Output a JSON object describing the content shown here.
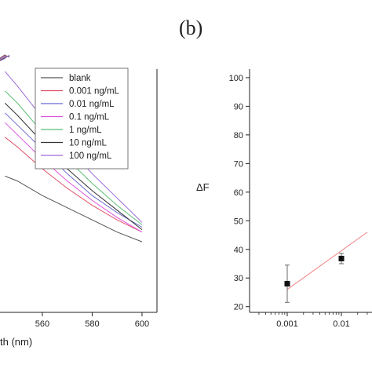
{
  "panel_label": "(b)",
  "chart_data": [
    {
      "type": "line",
      "xlabel": "th (nm)",
      "ylabel": "",
      "xlim": [
        543,
        606
      ],
      "x_ticks": [
        560,
        580,
        600
      ],
      "legend_position": "top-right",
      "x": [
        545,
        550,
        560,
        570,
        580,
        590,
        600
      ],
      "series": [
        {
          "name": "blank",
          "color": "#555555",
          "values": [
            56,
            54,
            48,
            43,
            38,
            33,
            29
          ]
        },
        {
          "name": "0.001 ng/mL",
          "color": "#e0506a",
          "values": [
            72,
            68,
            59,
            51,
            44,
            38,
            33
          ]
        },
        {
          "name": "0.01 ng/mL",
          "color": "#6a6ad0",
          "values": [
            82,
            77,
            67,
            57,
            48,
            41,
            35
          ]
        },
        {
          "name": "0.1 ng/mL",
          "color": "#e055e0",
          "values": [
            78,
            73,
            63,
            54,
            46,
            39,
            33
          ]
        },
        {
          "name": "1 ng/mL",
          "color": "#5cbf73",
          "values": [
            91,
            86,
            74,
            63,
            53,
            44,
            36
          ]
        },
        {
          "name": "10 ng/mL",
          "color": "#333333",
          "values": [
            86,
            81,
            70,
            59,
            50,
            42,
            34
          ]
        },
        {
          "name": "100 ng/mL",
          "color": "#9b6ad8",
          "values": [
            99,
            93,
            80,
            68,
            57,
            47,
            37
          ]
        }
      ]
    },
    {
      "type": "scatter",
      "xlabel": "",
      "ylabel": "ΔF",
      "xscale": "log",
      "ylim": [
        18,
        103
      ],
      "y_ticks": [
        20,
        30,
        40,
        50,
        60,
        70,
        80,
        90,
        100
      ],
      "x_ticks": [
        0.001,
        0.01
      ],
      "x_tick_labels": [
        "0.001",
        "0.01"
      ],
      "points": [
        {
          "x": 0.001,
          "y": 28,
          "err": 6.5
        },
        {
          "x": 0.01,
          "y": 36.8,
          "err": 1.8
        }
      ],
      "fit_line": {
        "color": "#f08080",
        "x": [
          0.001,
          0.03
        ],
        "y": [
          26,
          46
        ]
      }
    }
  ]
}
